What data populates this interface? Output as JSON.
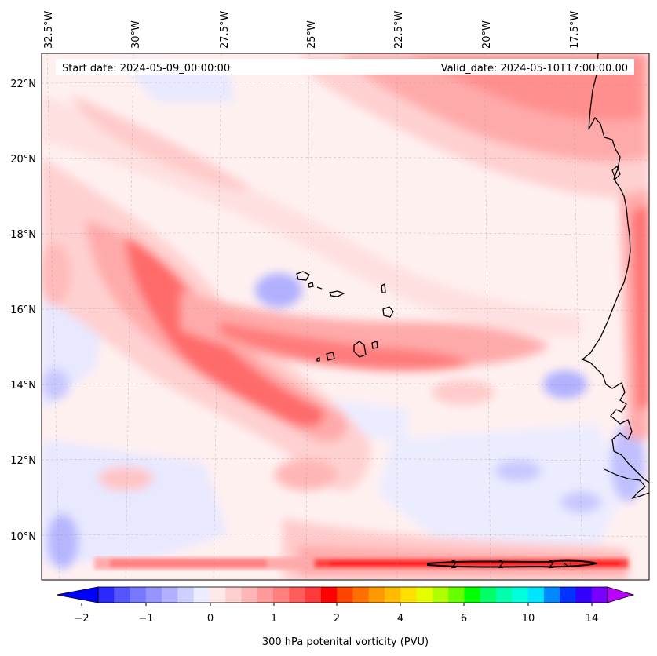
{
  "header": {
    "start_date": "Start date: 2024-05-09_00:00:00",
    "valid_date": "Valid_date: 2024-05-10T17:00:00.00"
  },
  "longitude_labels": [
    "32.5°W",
    "30°W",
    "27.5°W",
    "25°W",
    "22.5°W",
    "20°W",
    "17.5°W"
  ],
  "latitude_labels": [
    "22°N",
    "20°N",
    "18°N",
    "16°N",
    "14°N",
    "12°N",
    "10°N"
  ],
  "colorbar": {
    "tick_labels": [
      "−2",
      "−1",
      "0",
      "1",
      "2",
      "4",
      "6",
      "10",
      "14"
    ],
    "title": "300 hPa potenital vorticity (PVU)",
    "colors": [
      "#0000ff",
      "#2a2aff",
      "#5555ff",
      "#7777ff",
      "#9595ff",
      "#b0b0ff",
      "#d0d0ff",
      "#ececff",
      "#ffe8e8",
      "#ffd0d0",
      "#ffb6b6",
      "#ff9a9a",
      "#ff7e7e",
      "#ff5c5c",
      "#ff3a3a",
      "#ff0000",
      "#ff4400",
      "#ff7000",
      "#ff9900",
      "#ffbb00",
      "#ffe000",
      "#e6ff00",
      "#b0ff00",
      "#66ff00",
      "#00ff00",
      "#00ff66",
      "#00ffaa",
      "#00ffdd",
      "#00e5ff",
      "#0088ff",
      "#0033ff",
      "#3300ff",
      "#7700ff",
      "#bb00ff"
    ]
  },
  "contour_label": "2",
  "map_colors": {
    "background": "#fff0f0",
    "light_red": "#ffd0d0",
    "mid_red": "#ffaaaa",
    "strong_red": "#ff6a6a",
    "light_blue": "#e8e8ff",
    "mid_blue": "#b4b4ff"
  }
}
